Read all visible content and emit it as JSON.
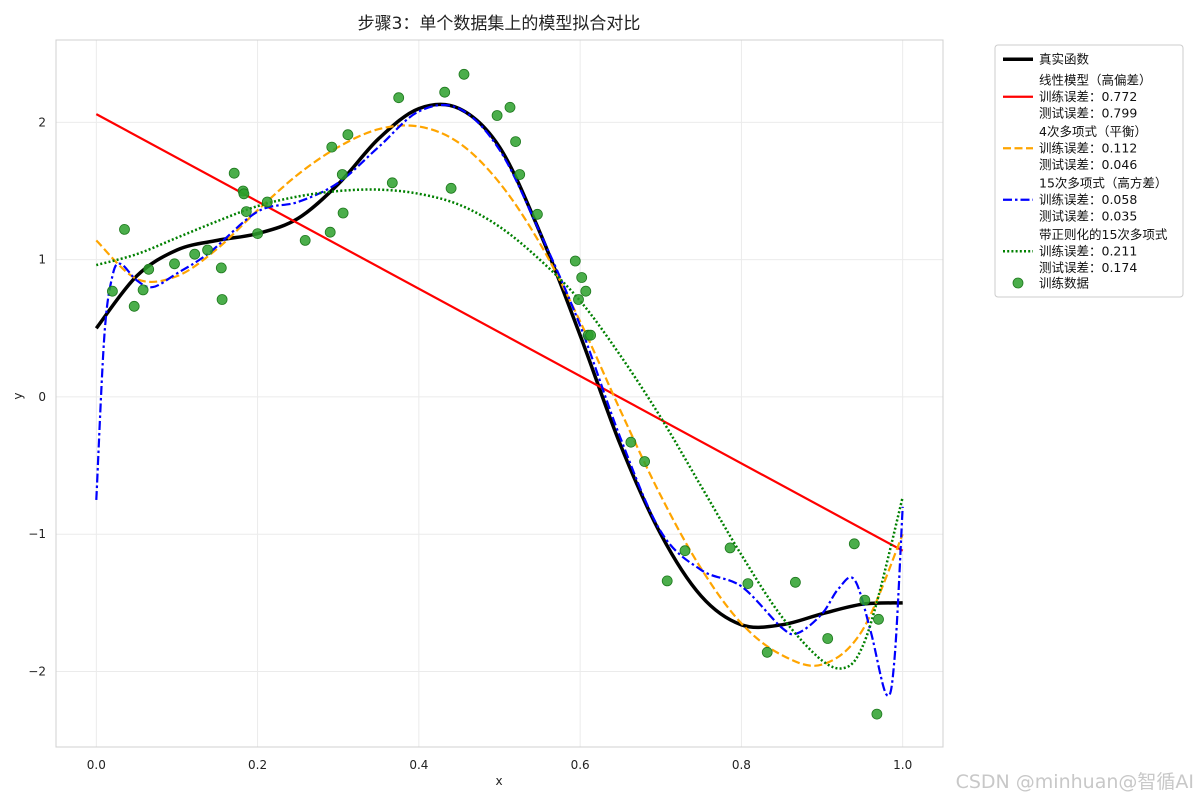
{
  "chart_data": {
    "type": "line",
    "title": "步骤3：单个数据集上的模型拟合对比",
    "xlabel": "x",
    "ylabel": "y",
    "xlim": [
      -0.05,
      1.05
    ],
    "ylim": [
      -2.55,
      2.6
    ],
    "xticks": [
      0.0,
      0.2,
      0.4,
      0.6,
      0.8,
      1.0
    ],
    "xtick_labels": [
      "0.0",
      "0.2",
      "0.4",
      "0.6",
      "0.8",
      "1.0"
    ],
    "yticks": [
      -2,
      -1,
      0,
      1,
      2
    ],
    "ytick_labels": [
      "−2",
      "−1",
      "0",
      "1",
      "2"
    ],
    "grid": true,
    "legend_position": "outside-top-right",
    "series": [
      {
        "name": "真实函数",
        "color": "#000000",
        "style": "solid",
        "x": [
          0.0,
          0.05,
          0.1,
          0.15,
          0.2,
          0.25,
          0.3,
          0.35,
          0.4,
          0.45,
          0.5,
          0.55,
          0.6,
          0.65,
          0.7,
          0.75,
          0.8,
          0.85,
          0.9,
          0.95,
          1.0
        ],
        "y": [
          0.5,
          0.88,
          1.07,
          1.14,
          1.19,
          1.3,
          1.55,
          1.88,
          2.1,
          2.1,
          1.82,
          1.2,
          0.45,
          -0.35,
          -1.0,
          -1.45,
          -1.66,
          -1.66,
          -1.58,
          -1.51,
          -1.5
        ]
      },
      {
        "name": "线性模型（高偏差）",
        "train_error_label": "训练误差：0.772",
        "test_error_label": "测试误差：0.799",
        "color": "#ff0000",
        "style": "solid",
        "x": [
          0.0,
          1.0
        ],
        "y": [
          2.06,
          -1.12
        ]
      },
      {
        "name": "4次多项式（平衡）",
        "train_error_label": "训练误差：0.112",
        "test_error_label": "测试误差：0.046",
        "color": "#ffa500",
        "style": "dashed",
        "x": [
          0.0,
          0.05,
          0.1,
          0.15,
          0.2,
          0.25,
          0.3,
          0.35,
          0.4,
          0.45,
          0.5,
          0.55,
          0.6,
          0.65,
          0.7,
          0.75,
          0.8,
          0.85,
          0.9,
          0.95,
          1.0
        ],
        "y": [
          1.14,
          0.86,
          0.88,
          1.08,
          1.36,
          1.62,
          1.82,
          1.95,
          1.97,
          1.85,
          1.56,
          1.12,
          0.55,
          -0.1,
          -0.72,
          -1.25,
          -1.65,
          -1.88,
          -1.95,
          -1.7,
          -1.0
        ]
      },
      {
        "name": "15次多项式（高方差）",
        "train_error_label": "训练误差：0.058",
        "test_error_label": "测试误差：0.035",
        "color": "#0000ff",
        "style": "dashdot",
        "x": [
          0.0,
          0.01,
          0.02,
          0.03,
          0.05,
          0.07,
          0.1,
          0.14,
          0.2,
          0.25,
          0.3,
          0.35,
          0.4,
          0.45,
          0.5,
          0.55,
          0.6,
          0.65,
          0.7,
          0.75,
          0.8,
          0.85,
          0.87,
          0.9,
          0.92,
          0.94,
          0.96,
          0.98,
          0.99,
          1.0
        ],
        "y": [
          -0.75,
          0.45,
          0.88,
          0.97,
          0.85,
          0.8,
          0.9,
          1.05,
          1.35,
          1.42,
          1.56,
          1.82,
          2.08,
          2.1,
          1.8,
          1.2,
          0.52,
          -0.3,
          -0.98,
          -1.26,
          -1.38,
          -1.68,
          -1.72,
          -1.58,
          -1.4,
          -1.33,
          -1.7,
          -2.17,
          -1.9,
          -0.8
        ]
      },
      {
        "name": "带正则化的15次多项式",
        "train_error_label": "训练误差：0.211",
        "test_error_label": "测试误差：0.174",
        "color": "#008000",
        "style": "dotted",
        "x": [
          0.0,
          0.05,
          0.1,
          0.15,
          0.2,
          0.25,
          0.3,
          0.35,
          0.4,
          0.45,
          0.5,
          0.55,
          0.6,
          0.65,
          0.7,
          0.75,
          0.8,
          0.85,
          0.9,
          0.93,
          0.95,
          0.97,
          1.0
        ],
        "y": [
          0.96,
          1.04,
          1.16,
          1.28,
          1.39,
          1.46,
          1.5,
          1.51,
          1.48,
          1.4,
          1.24,
          1.0,
          0.7,
          0.3,
          -0.15,
          -0.65,
          -1.15,
          -1.6,
          -1.92,
          -1.97,
          -1.82,
          -1.45,
          -0.73
        ]
      }
    ],
    "scatter": {
      "name": "训练数据",
      "color": "#2ca02c",
      "x": [
        0.02,
        0.035,
        0.047,
        0.058,
        0.065,
        0.097,
        0.122,
        0.138,
        0.155,
        0.156,
        0.171,
        0.182,
        0.183,
        0.186,
        0.2,
        0.212,
        0.259,
        0.29,
        0.292,
        0.305,
        0.306,
        0.312,
        0.367,
        0.375,
        0.432,
        0.44,
        0.456,
        0.497,
        0.513,
        0.52,
        0.525,
        0.547,
        0.594,
        0.598,
        0.602,
        0.607,
        0.61,
        0.613,
        0.663,
        0.68,
        0.708,
        0.73,
        0.786,
        0.808,
        0.832,
        0.867,
        0.907,
        0.94,
        0.953,
        0.968,
        0.97
      ],
      "y": [
        0.77,
        1.22,
        0.66,
        0.78,
        0.93,
        0.97,
        1.04,
        1.07,
        0.94,
        0.71,
        1.63,
        1.5,
        1.48,
        1.35,
        1.19,
        1.42,
        1.14,
        1.2,
        1.82,
        1.62,
        1.34,
        1.91,
        1.56,
        2.18,
        2.22,
        1.52,
        2.35,
        2.05,
        2.11,
        1.86,
        1.62,
        1.33,
        0.99,
        0.71,
        0.87,
        0.77,
        0.45,
        0.45,
        -0.33,
        -0.47,
        -1.34,
        -1.12,
        -1.1,
        -1.36,
        -1.86,
        -1.35,
        -1.76,
        -1.07,
        -1.48,
        -2.31,
        -1.62
      ]
    }
  },
  "watermark": "CSDN @minhuan@智循AI"
}
